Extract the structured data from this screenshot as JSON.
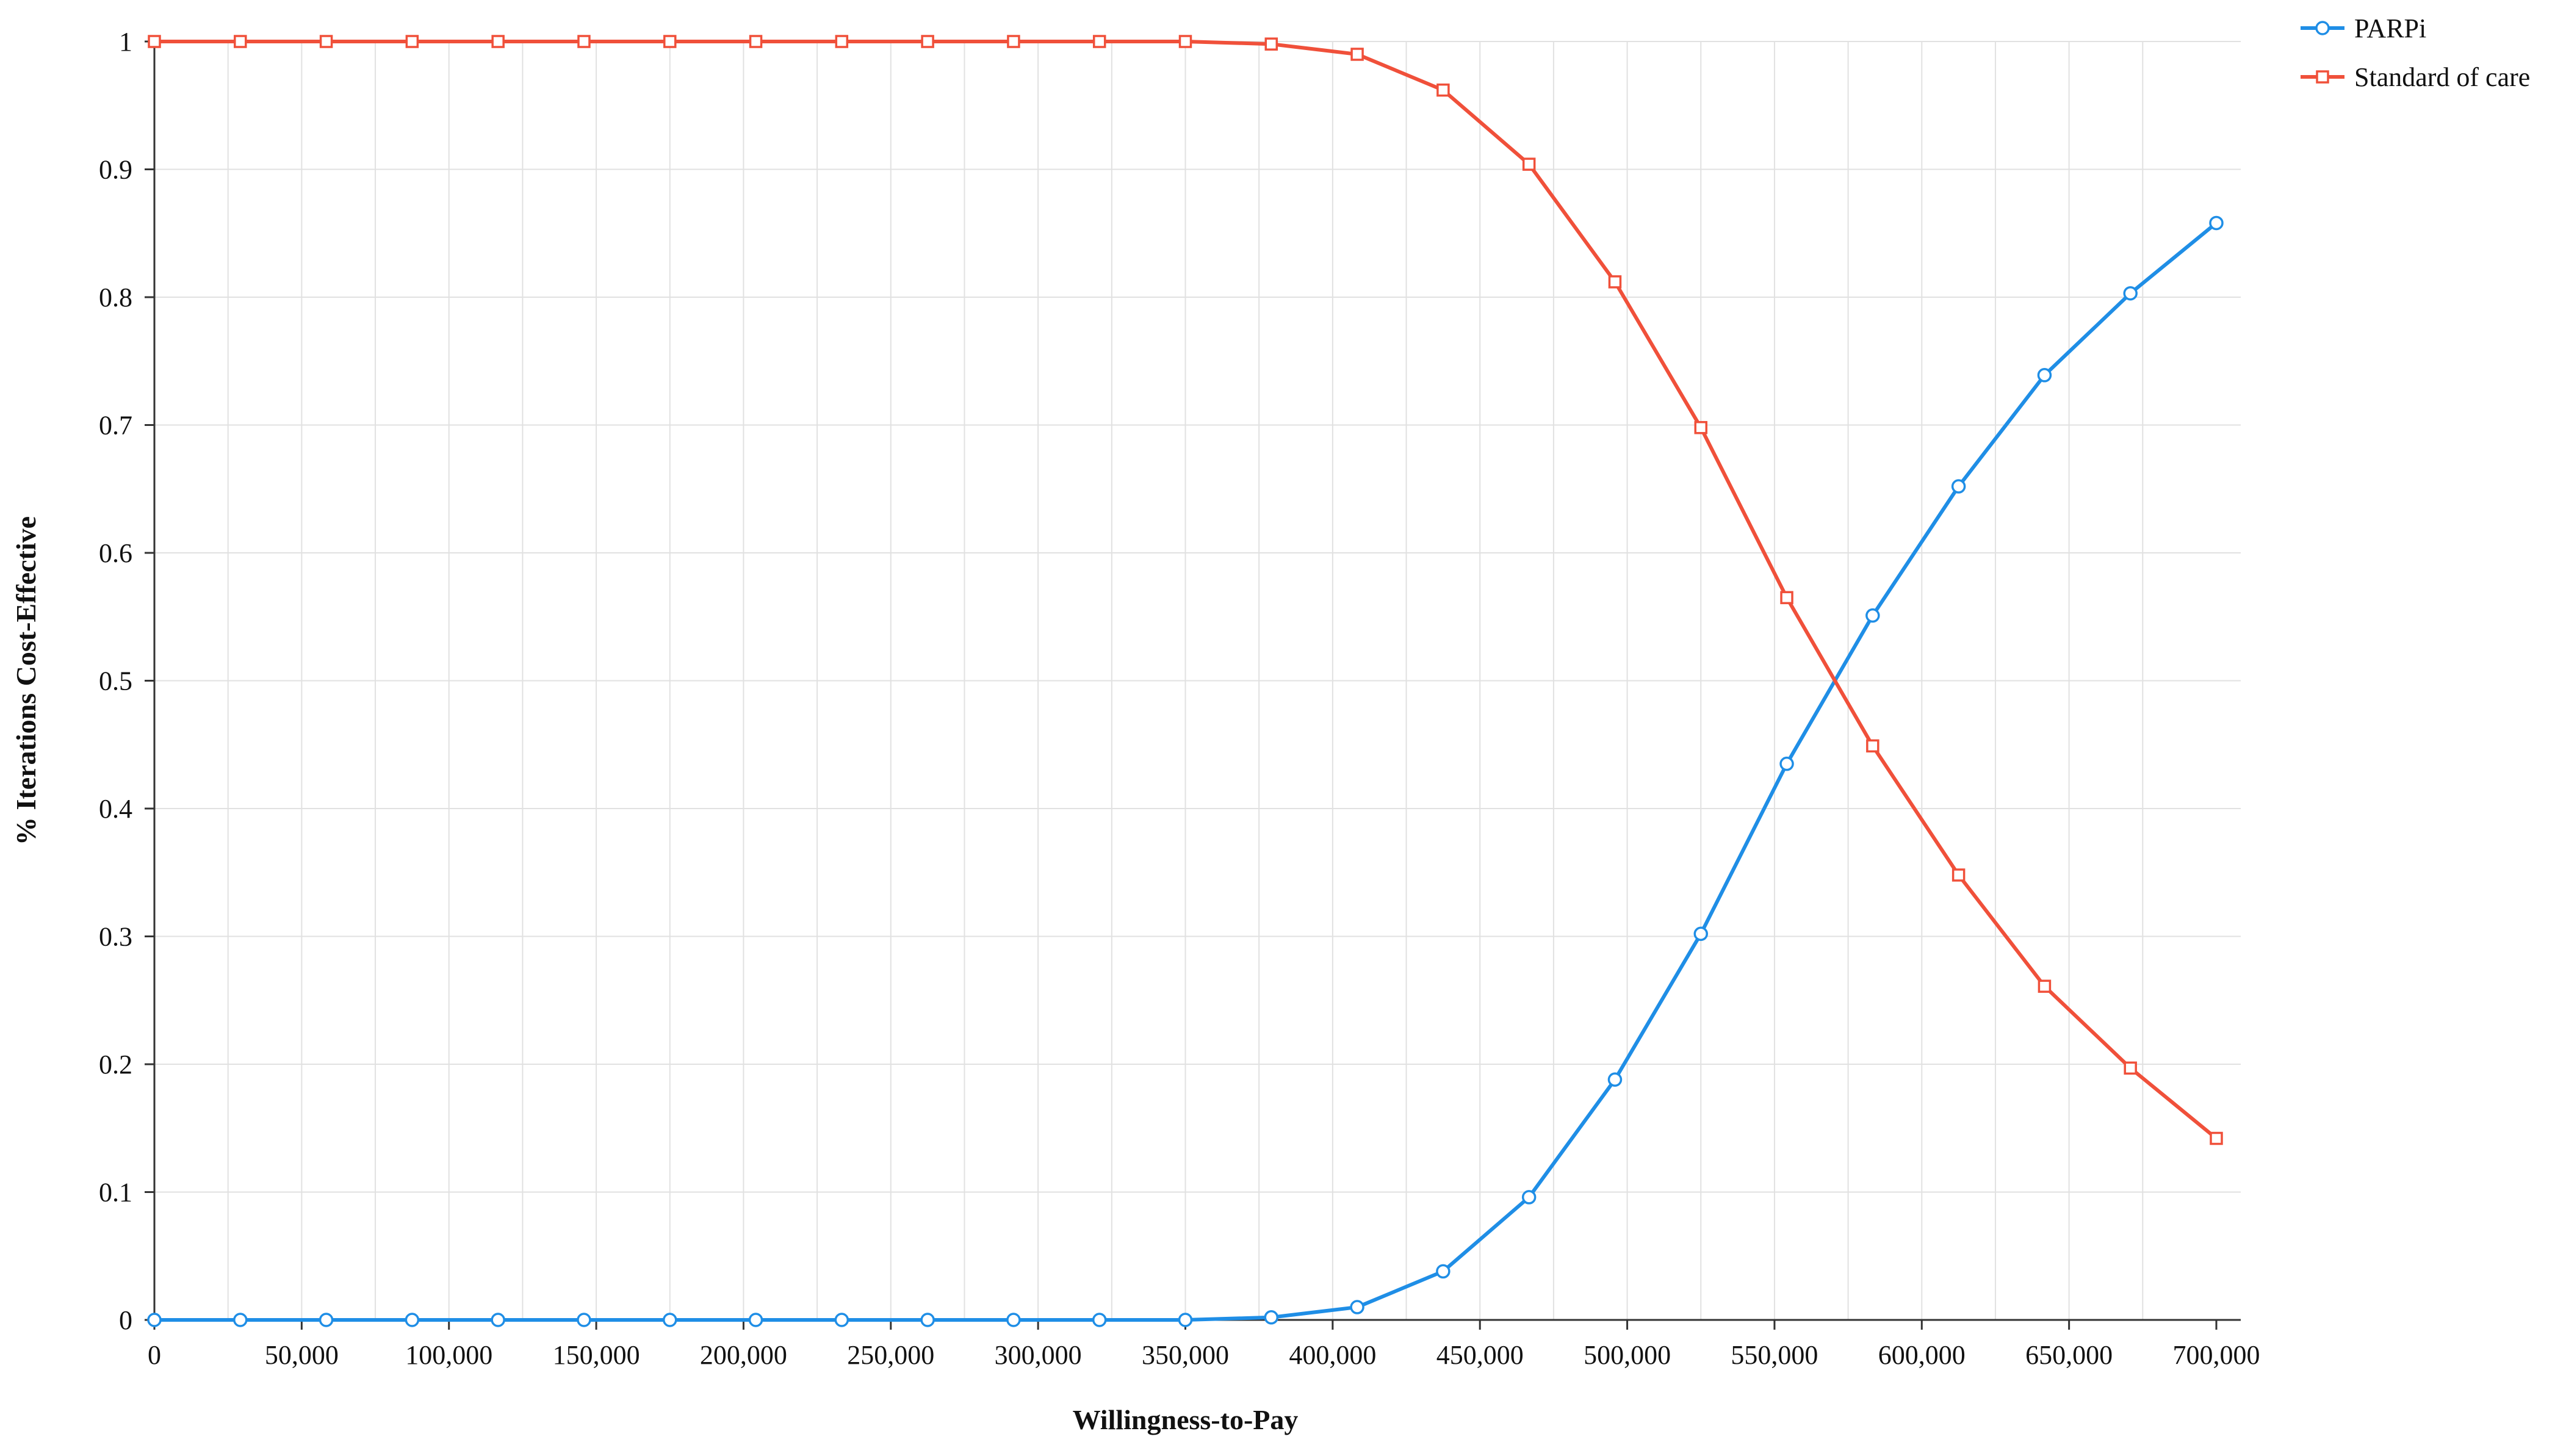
{
  "chart_data": {
    "type": "line",
    "title": "",
    "xlabel": "Willingness-to-Pay",
    "ylabel": "% Iterations Cost-Effective",
    "xlim": [
      0,
      700000
    ],
    "ylim": [
      0,
      1
    ],
    "grid": true,
    "legend_position": "top-right",
    "x_ticks": [
      0,
      50000,
      100000,
      150000,
      200000,
      250000,
      300000,
      350000,
      400000,
      450000,
      500000,
      550000,
      600000,
      650000,
      700000
    ],
    "x_tick_labels": [
      "0",
      "50,000",
      "100,000",
      "150,000",
      "200,000",
      "250,000",
      "300,000",
      "350,000",
      "400,000",
      "450,000",
      "500,000",
      "550,000",
      "600,000",
      "650,000",
      "700,000"
    ],
    "y_ticks": [
      0,
      0.1,
      0.2,
      0.3,
      0.4,
      0.5,
      0.6,
      0.7,
      0.8,
      0.9,
      1
    ],
    "y_tick_labels": [
      "0",
      "0.1",
      "0.2",
      "0.3",
      "0.4",
      "0.5",
      "0.6",
      "0.7",
      "0.8",
      "0.9",
      "1"
    ],
    "x": [
      0,
      29167,
      58333,
      87500,
      116667,
      145833,
      175000,
      204167,
      233333,
      262500,
      291667,
      320833,
      350000,
      379167,
      408333,
      437500,
      466667,
      495833,
      525000,
      554167,
      583333,
      612500,
      641667,
      670833,
      700000
    ],
    "series": [
      {
        "name": "PARPi",
        "color": "#1f8ee6",
        "marker": "circle",
        "values": [
          0,
          0,
          0,
          0,
          0,
          0,
          0,
          0,
          0,
          0,
          0,
          0,
          0,
          0.002,
          0.01,
          0.038,
          0.096,
          0.188,
          0.302,
          0.435,
          0.551,
          0.652,
          0.739,
          0.803,
          0.858
        ]
      },
      {
        "name": "Standard of care",
        "color": "#f0503a",
        "marker": "square",
        "values": [
          1,
          1,
          1,
          1,
          1,
          1,
          1,
          1,
          1,
          1,
          1,
          1,
          1,
          0.998,
          0.99,
          0.962,
          0.904,
          0.812,
          0.698,
          0.565,
          0.449,
          0.348,
          0.261,
          0.197,
          0.142
        ]
      }
    ]
  }
}
